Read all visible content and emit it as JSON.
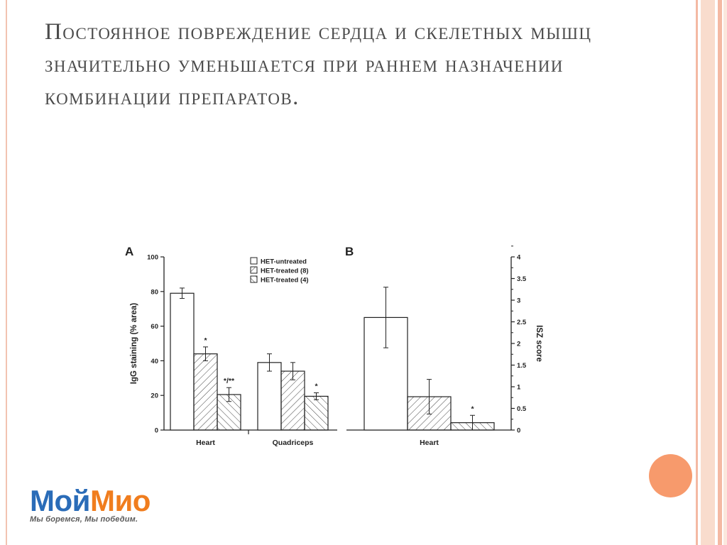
{
  "slide": {
    "title": "Постоянное повреждение сердца и скелетных мышц значительно уменьшается при раннем назначении комбинации препаратов."
  },
  "logo": {
    "part1": "Мой",
    "part2": "Мио",
    "tagline": "Мы боремся, Мы победим.",
    "colors": {
      "part1": "#2a6cb8",
      "part2": "#f07d1e"
    }
  },
  "theme": {
    "accent": "#f79a6c",
    "frame": "#f4b9a3"
  },
  "chart_data": [
    {
      "panel": "A",
      "type": "bar",
      "ylabel": "IgG staining (% area)",
      "ylim": [
        0,
        100
      ],
      "yticks": [
        "0",
        "20",
        "40",
        "60",
        "80",
        "100"
      ],
      "categories": [
        "Heart",
        "Quadriceps"
      ],
      "legend": {
        "placement": "top-center",
        "entries": [
          {
            "label": "HET-untreated",
            "pattern": "open"
          },
          {
            "label": "HET-treated (8)",
            "pattern": "hatch-forward"
          },
          {
            "label": "HET-treated (4)",
            "pattern": "hatch-back"
          }
        ]
      },
      "series": [
        {
          "name": "HET-untreated",
          "values": [
            79,
            39
          ],
          "errors": [
            3,
            5
          ],
          "annotations": [
            "",
            ""
          ]
        },
        {
          "name": "HET-treated (8)",
          "values": [
            44,
            34
          ],
          "errors": [
            4,
            5
          ],
          "annotations": [
            "*",
            ""
          ]
        },
        {
          "name": "HET-treated (4)",
          "values": [
            20.5,
            19.5
          ],
          "errors": [
            4,
            2
          ],
          "annotations": [
            "*/**",
            "*"
          ]
        }
      ]
    },
    {
      "panel": "B",
      "type": "bar",
      "ylabel": "ISZ score",
      "axis_side": "right",
      "ylim": [
        0,
        4
      ],
      "yticks": [
        "0",
        "0.5",
        "1",
        "1.5",
        "2",
        "2.5",
        "3",
        "3.5",
        "4"
      ],
      "categories": [
        "Heart"
      ],
      "series": [
        {
          "name": "HET-untreated",
          "values": [
            2.6
          ],
          "errors": [
            0.7
          ],
          "annotations": [
            ""
          ]
        },
        {
          "name": "HET-treated (8)",
          "values": [
            0.77
          ],
          "errors": [
            0.4
          ],
          "annotations": [
            ""
          ]
        },
        {
          "name": "HET-treated (4)",
          "values": [
            0.17
          ],
          "errors": [
            0.17
          ],
          "annotations": [
            "*"
          ]
        }
      ]
    }
  ]
}
